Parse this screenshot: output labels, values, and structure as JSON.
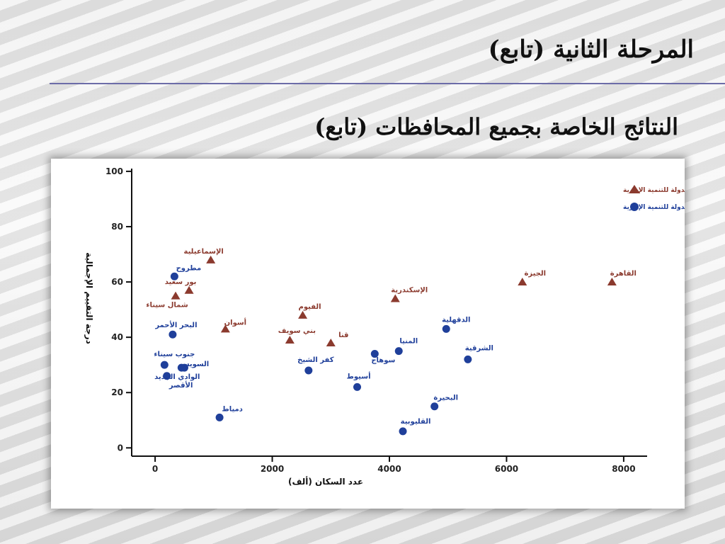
{
  "slide": {
    "title": "المرحلة الثانية (تابع)",
    "subtitle": "النتائج الخاصة بجميع المحافظات (تابع)"
  },
  "chart_data": {
    "type": "scatter",
    "title": "",
    "xlabel": "عدد السكان (ألف)",
    "ylabel": "درجة التقييم الإجمالية",
    "xlim": [
      -400,
      8400
    ],
    "ylim": [
      -3,
      101
    ],
    "xticks": [
      0,
      2000,
      4000,
      6000,
      8000
    ],
    "yticks": [
      0,
      20,
      40,
      60,
      80,
      100
    ],
    "grid": false,
    "legend_position": "top-right",
    "colors": {
      "developed": "#8b3a2e",
      "not_developed": "#1f3f9a"
    },
    "series": [
      {
        "name": "البوابات المطورة من قبل وزارة الدولة للتنمية الإدارية",
        "marker": "triangle",
        "points": [
          {
            "label": "الإسماعيلية",
            "x": 950,
            "y": 68
          },
          {
            "label": "بور سعيد",
            "x": 580,
            "y": 57
          },
          {
            "label": "شمال سيناء",
            "x": 350,
            "y": 55
          },
          {
            "label": "أسوان",
            "x": 1200,
            "y": 43
          },
          {
            "label": "الفيوم",
            "x": 2520,
            "y": 48
          },
          {
            "label": "بني سويف",
            "x": 2300,
            "y": 39
          },
          {
            "label": "قنا",
            "x": 3000,
            "y": 38
          },
          {
            "label": "الإسكندرية",
            "x": 4100,
            "y": 54
          },
          {
            "label": "الجيزة",
            "x": 6270,
            "y": 60
          },
          {
            "label": "القاهرة",
            "x": 7800,
            "y": 60
          }
        ]
      },
      {
        "name": "البوابات التي لم تطورها وزارة الدولة للتنمية الإدارية",
        "marker": "circle",
        "points": [
          {
            "label": "مطروح",
            "x": 330,
            "y": 62
          },
          {
            "label": "البحر الأحمر",
            "x": 300,
            "y": 41
          },
          {
            "label": "جنوب سيناء",
            "x": 160,
            "y": 30
          },
          {
            "label": "السويس",
            "x": 500,
            "y": 29
          },
          {
            "label": "الأقصر",
            "x": 200,
            "y": 26
          },
          {
            "label": "الوادي الجديد",
            "x": 450,
            "y": 29
          },
          {
            "label": "دمياط",
            "x": 1100,
            "y": 11
          },
          {
            "label": "كفر الشيخ",
            "x": 2620,
            "y": 28
          },
          {
            "label": "سوهاج",
            "x": 3750,
            "y": 34
          },
          {
            "label": "المنيا",
            "x": 4160,
            "y": 35
          },
          {
            "label": "أسيوط",
            "x": 3450,
            "y": 22
          },
          {
            "label": "الدقهلية",
            "x": 4970,
            "y": 43
          },
          {
            "label": "الشرقية",
            "x": 5340,
            "y": 32
          },
          {
            "label": "البحيرة",
            "x": 4770,
            "y": 15
          },
          {
            "label": "القليوبية",
            "x": 4230,
            "y": 6
          }
        ]
      }
    ]
  }
}
